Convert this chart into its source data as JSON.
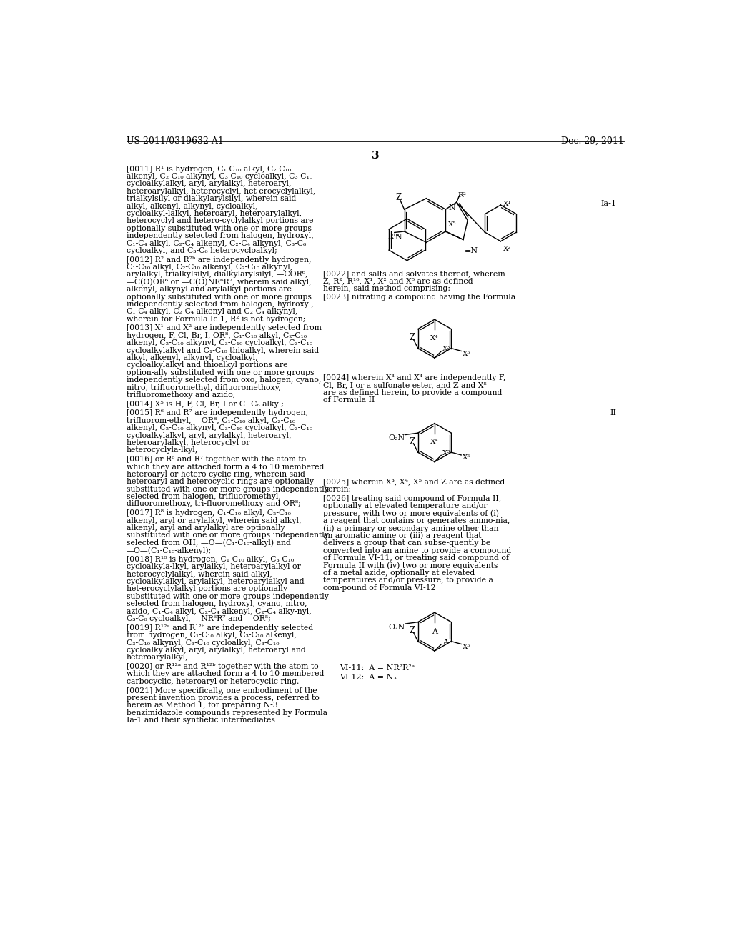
{
  "page_number": "3",
  "header_left": "US 2011/0319632 A1",
  "header_right": "Dec. 29, 2011",
  "background_color": "#ffffff",
  "text_color": "#000000",
  "left_col_paragraphs": [
    {
      "tag": "[0011]",
      "text": "R¹ is hydrogen, C₁-C₁₀ alkyl, C₂-C₁₀ alkenyl, C₂-C₁₀ alkynyl, C₃-C₁₀ cycloalkyl, C₃-C₁₀ cycloalkylalkyl, aryl, arylalkyl, heteroaryl, heteroarylalkyl, heterocyclyl, het-erocyclylalkyl, trialkylsilyl or dialkylarylsilyl, wherein said alkyl, alkenyl, alkynyl, cycloalkyl, cycloalkyl-lalkyl, heteroaryl, heteroarylalkyl, heterocyclyl and hetero-cyclylalkyl portions are optionally substituted with one or more groups independently selected from halogen, hydroxyl, C₁-C₄ alkyl, C₂-C₄ alkenyl, C₂-C₄ alkynyl, C₃-C₆ cycloalkyl, and C₃-C₆ heterocycloalkyl;"
    },
    {
      "tag": "[0012]",
      "text": "R² and R²ᵇ are independently hydrogen, C₁-C₁₀ alkyl, C₂-C₁₀ alkenyl, C₂-C₁₀ alkynyl, arylalkyl, trialkylsilyl, dialkylarylsilyl, —COR⁶, —C(O)OR⁶ or —C(O)NR⁶R⁷, wherein said alkyl, alkenyl, alkynyl and arylalkyl portions are optionally substituted with one or more groups independently selected from halogen, hydroxyl, C₁-C₄ alkyl, C₂-C₄ alkenyl and C₂-C₄ alkynyl, wherein for Formula Ic-1, R² is not hydrogen;"
    },
    {
      "tag": "[0013]",
      "text": "X¹ and X² are independently selected from hydrogen, F, Cl, Br, I, OR⁸, C₁-C₁₀ alkyl, C₂-C₁₀ alkenyl, C₂-C₁₀ alkynyl, C₃-C₁₀ cycloalkyl, C₃-C₁₀ cycloalkylalkyl and C₁-C₁₀ thioalkyl, wherein said alkyl, alkenyl, alkynyl, cycloalkyl, cycloalkylalkyl and thioalkyl portions are option-ally substituted with one or more groups independently selected from oxo, halogen, cyano, nitro, trifluoromethyl, difluoromethoxy, trifluoromethoxy and azido;"
    },
    {
      "tag": "[0014]",
      "text": "X⁵ is H, F, Cl, Br, I or C₁-C₆ alkyl;"
    },
    {
      "tag": "[0015]",
      "text": "R⁶ and R⁷ are independently hydrogen, trifluorom-ethyl, —OR⁸, C₁-C₁₀ alkyl, C₂-C₁₀ alkenyl, C₂-C₁₀ alkynyl, C₃-C₁₀ cycloalkyl, C₃-C₁₀ cycloalkylalkyl, aryl, arylalkyl, heteroaryl, heteroarylalkyl, heterocyclyl or heterocyclyla-lkyl,"
    },
    {
      "tag": "[0016]",
      "text": "or R⁶ and R⁷ together with the atom to which they are attached form a 4 to 10 membered heteroaryl or hetero-cyclic ring, wherein said heteroaryl and heterocyclic rings are optionally substituted with one or more groups independently selected from halogen, trifluoromethyl, difluoromethoxy, tri-fluoromethoxy and OR⁸;"
    },
    {
      "tag": "[0017]",
      "text": "R⁸ is hydrogen, C₁-C₁₀ alkyl, C₂-C₁₀ alkenyl, aryl or arylalkyl, wherein said alkyl, alkenyl, aryl and arylalkyl are optionally substituted with one or more groups independently selected from OH, —O—(C₁-C₁₀-alkyl) and —O—(C₁-C₁₀-alkenyl);"
    },
    {
      "tag": "[0018]",
      "text": "R¹⁰ is hydrogen, C₁-C₁₀ alkyl, C₃-C₁₀ cycloalkyla-lkyl, arylalkyl, heteroarylalkyl or heterocyclylalkyl, wherein said alkyl, cycloalkylalkyl, arylalkyl, heteroarylalkyl and het-erocyclylalkyl portions are optionally substituted with one or more groups independently selected from halogen, hydroxyl, cyano, nitro, azido, C₁-C₄ alkyl, C₂-C₄ alkenyl, C₂-C₄ alky-nyl, C₃-C₆ cycloalkyl, —NR⁶R⁷ and —OR⁵;"
    },
    {
      "tag": "[0019]",
      "text": "R¹²ᵃ and R¹²ᵇ are independently selected from hydrogen, C₁-C₁₀ alkyl, C₃-C₁₀ alkenyl, C₃-C₁₀ alkynyl, C₃-C₁₀ cycloalkyl, C₃-C₁₀ cycloalkylalkyl, aryl, arylalkyl, heteroaryl and heteroarylalkyl,"
    },
    {
      "tag": "[0020]",
      "text": "or R¹²ᵃ and R¹²ᵇ together with the atom to which they are attached form a 4 to 10 membered carbocyclic, heteroaryl or heterocyclic ring."
    },
    {
      "tag": "[0021]",
      "text": "More specifically, one embodiment of the present invention provides a process, referred to herein as Method 1, for preparing N-3 benzimidazole compounds represented by Formula Ia-1 and their synthetic intermediates"
    }
  ],
  "right_col_paragraphs": [
    {
      "tag": "[0022]",
      "text": "and salts and solvates thereof, wherein Z, R², R¹⁰, X¹, X² and X⁵ are as defined herein, said method comprising:"
    },
    {
      "tag": "[0023]",
      "text": "nitrating a compound having the Formula"
    },
    {
      "tag": "[0024]",
      "text": "wherein X³ and X⁴ are independently F, Cl, Br, I or a sulfonate ester, and Z and X⁵ are as defined herein, to provide a compound of Formula II"
    },
    {
      "tag": "[0025]",
      "text": "wherein X³, X⁴, X⁵ and Z are as defined herein;"
    },
    {
      "tag": "[0026]",
      "text": "treating said compound of Formula II, optionally at elevated temperature and/or pressure, with two or more equivalents of (i) a reagent that contains or generates ammo-nia, (ii) a primary or secondary amine other than an aromatic amine or (iii) a reagent that delivers a group that can subse-quently be converted into an amine to provide a compound of Formula VI-11, or treating said compound of Formula II with (iv) two or more equivalents of a metal azide, optionally at elevated temperatures and/or pressure, to provide a com-pound of Formula VI-12"
    }
  ]
}
